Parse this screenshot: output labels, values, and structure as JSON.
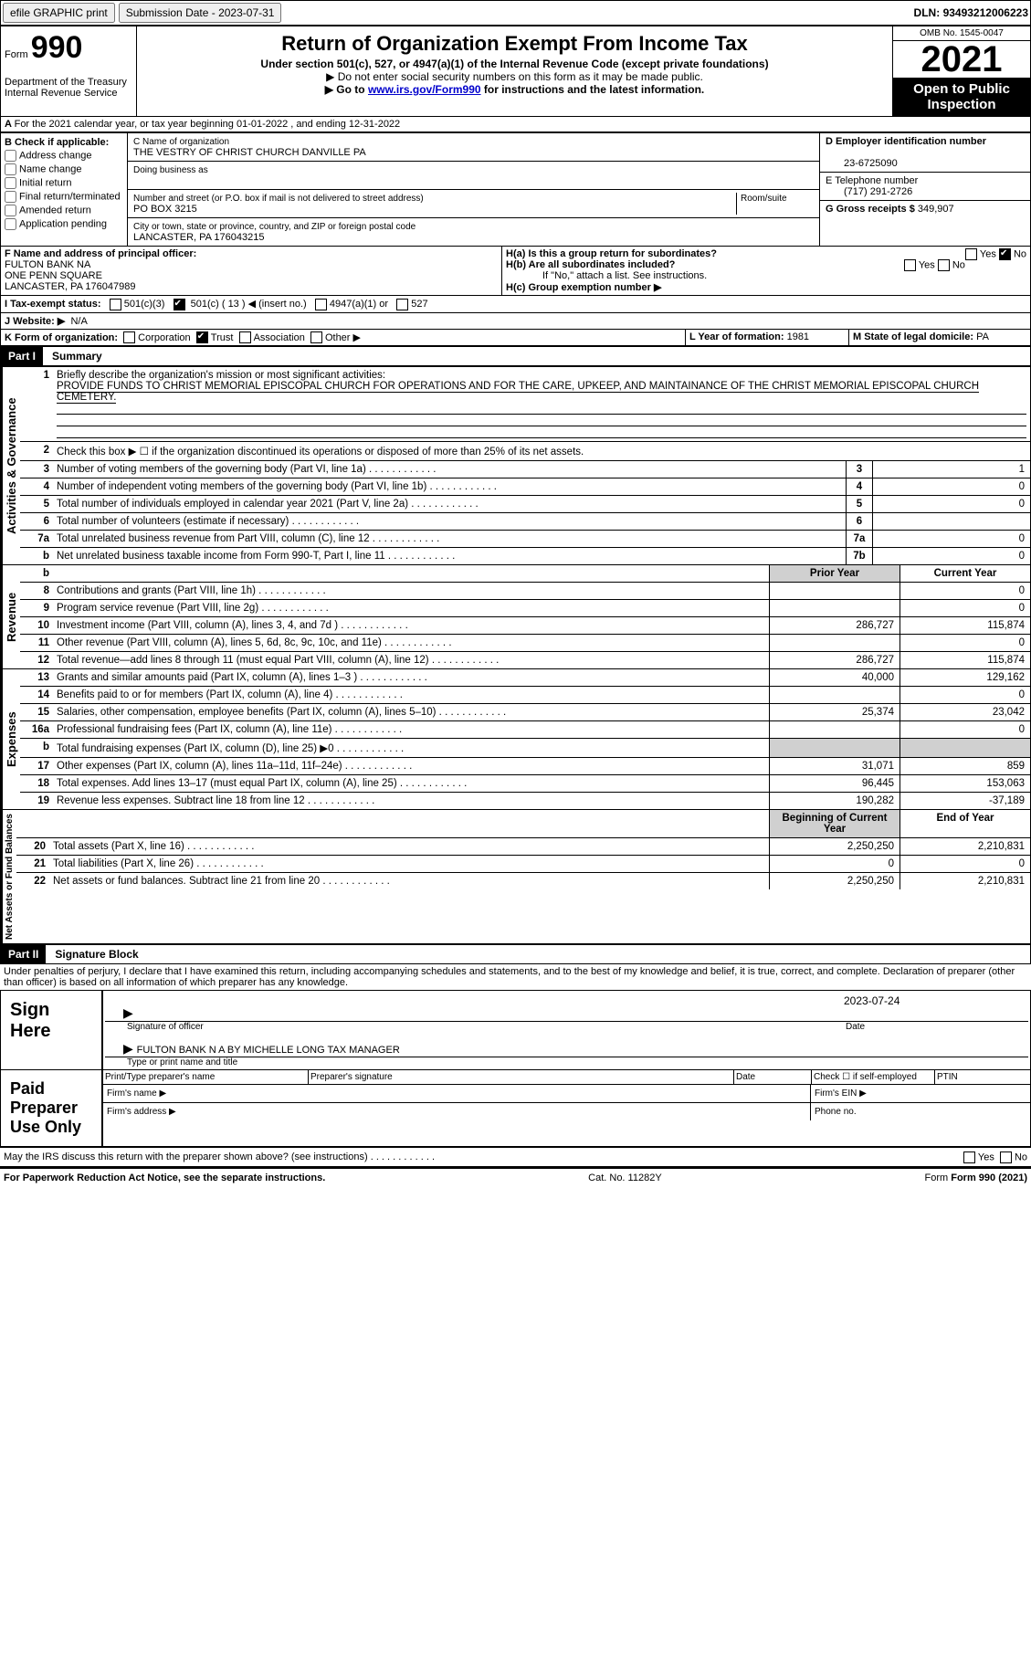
{
  "header_top": {
    "efile": "efile GRAPHIC print",
    "submission": "Submission Date - 2023-07-31",
    "dln_label": "DLN:",
    "dln": "93493212006223"
  },
  "form_header": {
    "form_word": "Form",
    "form_no": "990",
    "dept": "Department of the Treasury",
    "irs": "Internal Revenue Service",
    "title": "Return of Organization Exempt From Income Tax",
    "subtitle": "Under section 501(c), 527, or 4947(a)(1) of the Internal Revenue Code (except private foundations)",
    "warn1": "▶ Do not enter social security numbers on this form as it may be made public.",
    "warn2_a": "▶ Go to ",
    "warn2_link": "www.irs.gov/Form990",
    "warn2_b": " for instructions and the latest information.",
    "omb": "OMB No. 1545-0047",
    "year": "2021",
    "open": "Open to Public Inspection"
  },
  "line_A": "For the 2021 calendar year, or tax year beginning 01-01-2022    , and ending 12-31-2022",
  "col_B": {
    "head": "B Check if applicable:",
    "opts": [
      "Address change",
      "Name change",
      "Initial return",
      "Final return/terminated",
      "Amended return",
      "Application pending"
    ]
  },
  "col_C": {
    "name_label": "C Name of organization",
    "name": "THE VESTRY OF CHRIST CHURCH DANVILLE PA",
    "dba_label": "Doing business as",
    "addr_label": "Number and street (or P.O. box if mail is not delivered to street address)",
    "addr": "PO BOX 3215",
    "room_label": "Room/suite",
    "city_label": "City or town, state or province, country, and ZIP or foreign postal code",
    "city": "LANCASTER, PA  176043215"
  },
  "col_D": {
    "ein_label": "D Employer identification number",
    "ein": "23-6725090",
    "tel_label": "E Telephone number",
    "tel": "(717) 291-2726",
    "gross_label": "G Gross receipts $",
    "gross": "349,907"
  },
  "section_F": {
    "label": "F  Name and address of principal officer:",
    "name": "FULTON BANK NA",
    "addr1": "ONE PENN SQUARE",
    "addr2": "LANCASTER, PA  176047989"
  },
  "section_H": {
    "ha": "H(a)  Is this a group return for subordinates?",
    "hb": "H(b)  Are all subordinates included?",
    "hb_note": "If \"No,\" attach a list. See instructions.",
    "hc": "H(c)  Group exemption number ▶"
  },
  "section_I": {
    "label": "I    Tax-exempt status:",
    "o1": "501(c)(3)",
    "o2a": "501(c) (",
    "o2b": "13",
    "o2c": ") ◀ (insert no.)",
    "o3": "4947(a)(1) or",
    "o4": "527"
  },
  "section_J": {
    "label": "J   Website: ▶",
    "val": "N/A"
  },
  "section_K": {
    "label": "K Form of organization:",
    "opts": [
      "Corporation",
      "Trust",
      "Association",
      "Other ▶"
    ],
    "checked": 1
  },
  "section_L": {
    "label": "L Year of formation:",
    "val": "1981"
  },
  "section_M": {
    "label": "M State of legal domicile:",
    "val": "PA"
  },
  "partI": {
    "bar": "Part I",
    "title": "Summary"
  },
  "summary": {
    "q1_label": "Briefly describe the organization's mission or most significant activities:",
    "q1": "PROVIDE FUNDS TO CHRIST MEMORIAL EPISCOPAL CHURCH FOR OPERATIONS AND FOR THE CARE, UPKEEP, AND MAINTAINANCE OF THE CHRIST MEMORIAL EPISCOPAL CHURCH CEMETERY.",
    "q2": "Check this box ▶ ☐  if the organization discontinued its operations or disposed of more than 25% of its net assets.",
    "lines": [
      {
        "n": "3",
        "d": "Number of voting members of the governing body (Part VI, line 1a)",
        "box": "3",
        "v": "1"
      },
      {
        "n": "4",
        "d": "Number of independent voting members of the governing body (Part VI, line 1b)",
        "box": "4",
        "v": "0"
      },
      {
        "n": "5",
        "d": "Total number of individuals employed in calendar year 2021 (Part V, line 2a)",
        "box": "5",
        "v": "0"
      },
      {
        "n": "6",
        "d": "Total number of volunteers (estimate if necessary)",
        "box": "6",
        "v": ""
      },
      {
        "n": "7a",
        "d": "Total unrelated business revenue from Part VIII, column (C), line 12",
        "box": "7a",
        "v": "0"
      },
      {
        "n": "b",
        "d": "Net unrelated business taxable income from Form 990-T, Part I, line 11",
        "box": "7b",
        "v": "0"
      }
    ],
    "col_hdr_prior": "Prior Year",
    "col_hdr_curr": "Current Year",
    "col_hdr_beg": "Beginning of Current Year",
    "col_hdr_end": "End of Year",
    "revenue": [
      {
        "n": "8",
        "d": "Contributions and grants (Part VIII, line 1h)",
        "p": "",
        "c": "0"
      },
      {
        "n": "9",
        "d": "Program service revenue (Part VIII, line 2g)",
        "p": "",
        "c": "0"
      },
      {
        "n": "10",
        "d": "Investment income (Part VIII, column (A), lines 3, 4, and 7d )",
        "p": "286,727",
        "c": "115,874"
      },
      {
        "n": "11",
        "d": "Other revenue (Part VIII, column (A), lines 5, 6d, 8c, 9c, 10c, and 11e)",
        "p": "",
        "c": "0"
      },
      {
        "n": "12",
        "d": "Total revenue—add lines 8 through 11 (must equal Part VIII, column (A), line 12)",
        "p": "286,727",
        "c": "115,874"
      }
    ],
    "expenses": [
      {
        "n": "13",
        "d": "Grants and similar amounts paid (Part IX, column (A), lines 1–3 )",
        "p": "40,000",
        "c": "129,162"
      },
      {
        "n": "14",
        "d": "Benefits paid to or for members (Part IX, column (A), line 4)",
        "p": "",
        "c": "0"
      },
      {
        "n": "15",
        "d": "Salaries, other compensation, employee benefits (Part IX, column (A), lines 5–10)",
        "p": "25,374",
        "c": "23,042"
      },
      {
        "n": "16a",
        "d": "Professional fundraising fees (Part IX, column (A), line 11e)",
        "p": "",
        "c": "0"
      },
      {
        "n": "b",
        "d": "Total fundraising expenses (Part IX, column (D), line 25) ▶0",
        "p": "",
        "c": "",
        "shaded": true
      },
      {
        "n": "17",
        "d": "Other expenses (Part IX, column (A), lines 11a–11d, 11f–24e)",
        "p": "31,071",
        "c": "859"
      },
      {
        "n": "18",
        "d": "Total expenses. Add lines 13–17 (must equal Part IX, column (A), line 25)",
        "p": "96,445",
        "c": "153,063"
      },
      {
        "n": "19",
        "d": "Revenue less expenses. Subtract line 18 from line 12",
        "p": "190,282",
        "c": "-37,189"
      }
    ],
    "netassets": [
      {
        "n": "20",
        "d": "Total assets (Part X, line 16)",
        "p": "2,250,250",
        "c": "2,210,831"
      },
      {
        "n": "21",
        "d": "Total liabilities (Part X, line 26)",
        "p": "0",
        "c": "0"
      },
      {
        "n": "22",
        "d": "Net assets or fund balances. Subtract line 21 from line 20",
        "p": "2,250,250",
        "c": "2,210,831"
      }
    ],
    "vert_labels": {
      "ag": "Activities & Governance",
      "rev": "Revenue",
      "exp": "Expenses",
      "na": "Net Assets or\nFund Balances"
    }
  },
  "partII": {
    "bar": "Part II",
    "title": "Signature Block"
  },
  "sig": {
    "perjury": "Under penalties of perjury, I declare that I have examined this return, including accompanying schedules and statements, and to the best of my knowledge and belief, it is true, correct, and complete. Declaration of preparer (other than officer) is based on all information of which preparer has any knowledge.",
    "sign_here": "Sign Here",
    "sig_officer": "Signature of officer",
    "date_lbl": "Date",
    "date": "2023-07-24",
    "name": "FULTON BANK N A BY MICHELLE LONG  TAX MANAGER",
    "name_lbl": "Type or print name and title",
    "paid": "Paid Preparer Use Only",
    "pp_name": "Print/Type preparer's name",
    "pp_sig": "Preparer's signature",
    "pp_date": "Date",
    "pp_check": "Check ☐ if self-employed",
    "ptin": "PTIN",
    "firm_name": "Firm's name    ▶",
    "firm_ein": "Firm's EIN ▶",
    "firm_addr": "Firm's address ▶",
    "phone": "Phone no."
  },
  "footer": {
    "discuss": "May the IRS discuss this return with the preparer shown above? (see instructions)",
    "notice": "For Paperwork Reduction Act Notice, see the separate instructions.",
    "cat": "Cat. No. 11282Y",
    "form": "Form 990 (2021)"
  }
}
